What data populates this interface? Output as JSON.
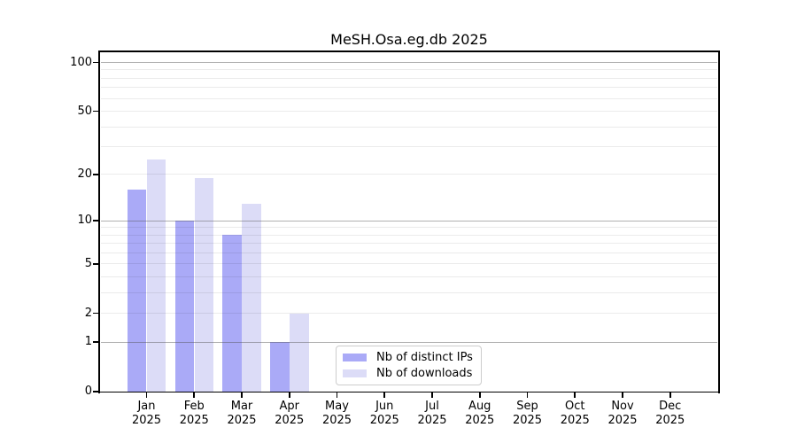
{
  "chart_data": {
    "type": "bar",
    "title": "MeSH.Osa.eg.db 2025",
    "categories": [
      "Jan",
      "Feb",
      "Mar",
      "Apr",
      "May",
      "Jun",
      "Jul",
      "Aug",
      "Sep",
      "Oct",
      "Nov",
      "Dec"
    ],
    "year": "2025",
    "series": [
      {
        "name": "Nb of distinct IPs",
        "color": "#aaaaf7",
        "values": [
          16,
          10,
          8,
          1,
          0,
          0,
          0,
          0,
          0,
          0,
          0,
          0
        ]
      },
      {
        "name": "Nb of downloads",
        "color": "#dcdcf7",
        "values": [
          25,
          19,
          13,
          2,
          0,
          0,
          0,
          0,
          0,
          0,
          0,
          0
        ]
      }
    ],
    "y_axis": {
      "scale": "log1p",
      "tick_values": [
        0,
        1,
        2,
        5,
        10,
        20,
        50,
        100
      ],
      "major_gridlines": [
        1,
        10,
        100
      ],
      "minor_gridlines": [
        2,
        3,
        4,
        5,
        6,
        7,
        8,
        9,
        20,
        30,
        40,
        50,
        60,
        70,
        80,
        90
      ],
      "ylim": [
        0,
        116
      ],
      "grid": "on"
    },
    "legend": {
      "position": "lower center",
      "frame": "on"
    }
  }
}
